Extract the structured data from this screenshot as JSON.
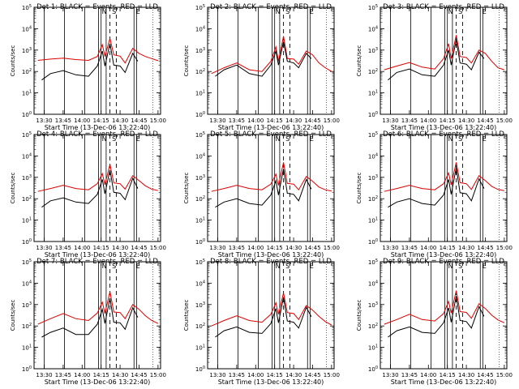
{
  "figure": {
    "xlabel": "Start Time (13-Dec-06 13:22:40)",
    "ylabel": "Counts/sec",
    "x_tick_labels": [
      "13:30",
      "13:45",
      "14:00",
      "14:15",
      "14:30",
      "14:45",
      "15:00"
    ],
    "y_tick_labels": [
      "10^0",
      "10^1",
      "10^2",
      "10^3",
      "10^4",
      "10^5"
    ],
    "colors": {
      "events": "#000000",
      "lld": "#dd0000",
      "background": "#ffffff"
    }
  },
  "chart_data": [
    {
      "type": "line",
      "title": "Det 1: BLACK = Events, RED = LLD",
      "xlabel": "Start Time (13-Dec-06 13:22:40)",
      "ylabel": "Counts/sec",
      "x_range": [
        "13:22",
        "15:02"
      ],
      "yscale": "log",
      "ylim": [
        1,
        100000
      ],
      "marker_letters": [
        {
          "letter": "N",
          "x": "14:15"
        },
        {
          "letter": "S",
          "x": "14:23"
        },
        {
          "letter": "E",
          "x": "14:42"
        }
      ],
      "series": [
        {
          "values_x": [
            "13:25",
            "13:35",
            "13:45",
            "13:55",
            "14:05",
            "14:12",
            "14:16",
            "14:18",
            "14:22",
            "14:25",
            "14:30",
            "14:34",
            "14:40",
            "14:45",
            "14:50",
            "14:55",
            "15:00"
          ],
          "values_y": [
            330,
            380,
            420,
            360,
            330,
            500,
            1800,
            500,
            3500,
            600,
            520,
            250,
            1200,
            700,
            500,
            400,
            320
          ]
        },
        {
          "values_x": [
            "13:28",
            "13:35",
            "13:45",
            "13:55",
            "14:05",
            "14:12",
            "14:16",
            "14:18",
            "14:22",
            "14:25",
            "14:30",
            "14:34",
            "14:40",
            "14:44"
          ],
          "values_y": [
            40,
            80,
            110,
            70,
            60,
            180,
            900,
            180,
            2000,
            200,
            180,
            90,
            700,
            300
          ]
        }
      ]
    },
    {
      "type": "line",
      "title": "Det 2: BLACK = Events, RED = LLD",
      "xlabel": "Start Time (13-Dec-06 13:22:40)",
      "ylabel": "Counts/sec",
      "x_range": [
        "13:22",
        "15:02"
      ],
      "yscale": "log",
      "ylim": [
        1,
        100000
      ],
      "marker_letters": [
        {
          "letter": "N",
          "x": "14:15"
        },
        {
          "letter": "S",
          "x": "14:23"
        },
        {
          "letter": "E",
          "x": "14:42"
        }
      ],
      "series": [
        {
          "values_x": [
            "13:25",
            "13:35",
            "13:45",
            "13:55",
            "14:05",
            "14:12",
            "14:16",
            "14:18",
            "14:22",
            "14:25",
            "14:30",
            "14:34",
            "14:40",
            "14:45",
            "14:50",
            "14:55",
            "15:00"
          ],
          "values_y": [
            80,
            150,
            250,
            120,
            100,
            300,
            1400,
            300,
            4500,
            400,
            380,
            220,
            900,
            600,
            250,
            150,
            100
          ]
        },
        {
          "values_x": [
            "13:28",
            "13:35",
            "13:45",
            "13:55",
            "14:05",
            "14:12",
            "14:16",
            "14:18",
            "14:22",
            "14:25",
            "14:30",
            "14:34",
            "14:40",
            "14:44"
          ],
          "values_y": [
            60,
            120,
            200,
            80,
            60,
            200,
            900,
            200,
            2500,
            300,
            250,
            150,
            700,
            400
          ]
        }
      ]
    },
    {
      "type": "line",
      "title": "Det 3: BLACK = Events, RED = LLD",
      "xlabel": "Start Time (13-Dec-06 13:22:40)",
      "ylabel": "Counts/sec",
      "x_range": [
        "13:22",
        "15:02"
      ],
      "yscale": "log",
      "ylim": [
        1,
        100000
      ],
      "marker_letters": [
        {
          "letter": "N",
          "x": "14:15"
        },
        {
          "letter": "S",
          "x": "14:23"
        },
        {
          "letter": "E",
          "x": "14:42"
        }
      ],
      "series": [
        {
          "values_x": [
            "13:25",
            "13:35",
            "13:45",
            "13:55",
            "14:05",
            "14:12",
            "14:16",
            "14:18",
            "14:22",
            "14:25",
            "14:30",
            "14:34",
            "14:40",
            "14:45",
            "14:50",
            "14:55",
            "15:00"
          ],
          "values_y": [
            120,
            180,
            260,
            160,
            130,
            400,
            2000,
            400,
            5000,
            500,
            450,
            250,
            1000,
            700,
            300,
            150,
            120
          ]
        },
        {
          "values_x": [
            "13:28",
            "13:35",
            "13:45",
            "13:55",
            "14:05",
            "14:12",
            "14:16",
            "14:18",
            "14:22",
            "14:25",
            "14:30",
            "14:34",
            "14:40",
            "14:44"
          ],
          "values_y": [
            40,
            90,
            130,
            70,
            60,
            200,
            1000,
            200,
            3000,
            250,
            220,
            120,
            800,
            400
          ]
        }
      ]
    },
    {
      "type": "line",
      "title": "Det 4: BLACK = Events, RED = LLD",
      "xlabel": "Start Time (13-Dec-06 13:22:40)",
      "ylabel": "Counts/sec",
      "x_range": [
        "13:22",
        "15:02"
      ],
      "yscale": "log",
      "ylim": [
        1,
        100000
      ],
      "marker_letters": [
        {
          "letter": "N",
          "x": "14:15"
        },
        {
          "letter": "S",
          "x": "14:23"
        },
        {
          "letter": "E",
          "x": "14:42"
        }
      ],
      "series": [
        {
          "values_x": [
            "13:25",
            "13:35",
            "13:45",
            "13:55",
            "14:05",
            "14:12",
            "14:16",
            "14:18",
            "14:22",
            "14:25",
            "14:30",
            "14:34",
            "14:40",
            "14:45",
            "14:50",
            "14:55",
            "15:00"
          ],
          "values_y": [
            220,
            300,
            420,
            300,
            260,
            500,
            1500,
            450,
            4000,
            550,
            500,
            280,
            1200,
            700,
            400,
            280,
            240
          ]
        },
        {
          "values_x": [
            "13:28",
            "13:35",
            "13:45",
            "13:55",
            "14:05",
            "14:12",
            "14:16",
            "14:18",
            "14:22",
            "14:25",
            "14:30",
            "14:34",
            "14:40",
            "14:44"
          ],
          "values_y": [
            40,
            80,
            110,
            70,
            60,
            160,
            800,
            170,
            2200,
            200,
            180,
            90,
            900,
            300
          ]
        }
      ]
    },
    {
      "type": "line",
      "title": "Det 5: BLACK = Events, RED = LLD",
      "xlabel": "Start Time (13-Dec-06 13:22:40)",
      "ylabel": "Counts/sec",
      "x_range": [
        "13:22",
        "15:02"
      ],
      "yscale": "log",
      "ylim": [
        1,
        100000
      ],
      "marker_letters": [
        {
          "letter": "N",
          "x": "14:15"
        },
        {
          "letter": "S",
          "x": "14:23"
        },
        {
          "letter": "E",
          "x": "14:42"
        }
      ],
      "series": [
        {
          "values_x": [
            "13:25",
            "13:35",
            "13:45",
            "13:55",
            "14:05",
            "14:12",
            "14:16",
            "14:18",
            "14:22",
            "14:25",
            "14:30",
            "14:34",
            "14:40",
            "14:45",
            "14:50",
            "14:55",
            "15:00"
          ],
          "values_y": [
            220,
            300,
            420,
            300,
            260,
            480,
            1400,
            420,
            5000,
            520,
            480,
            260,
            1100,
            650,
            350,
            260,
            230
          ]
        },
        {
          "values_x": [
            "13:28",
            "13:35",
            "13:45",
            "13:55",
            "14:05",
            "14:12",
            "14:16",
            "14:18",
            "14:22",
            "14:25",
            "14:30",
            "14:34",
            "14:40",
            "14:44"
          ],
          "values_y": [
            40,
            70,
            100,
            60,
            50,
            150,
            700,
            150,
            2500,
            180,
            160,
            80,
            800,
            280
          ]
        }
      ]
    },
    {
      "type": "line",
      "title": "Det 6: BLACK = Events, RED = LLD",
      "xlabel": "Start Time (13-Dec-06 13:22:40)",
      "ylabel": "Counts/sec",
      "x_range": [
        "13:22",
        "15:02"
      ],
      "yscale": "log",
      "ylim": [
        1,
        100000
      ],
      "marker_letters": [
        {
          "letter": "N",
          "x": "14:15"
        },
        {
          "letter": "S",
          "x": "14:23"
        },
        {
          "letter": "E",
          "x": "14:42"
        }
      ],
      "series": [
        {
          "values_x": [
            "13:25",
            "13:35",
            "13:45",
            "13:55",
            "14:05",
            "14:12",
            "14:16",
            "14:18",
            "14:22",
            "14:25",
            "14:30",
            "14:34",
            "14:40",
            "14:45",
            "14:50",
            "14:55",
            "15:00"
          ],
          "values_y": [
            220,
            300,
            420,
            300,
            260,
            500,
            1600,
            450,
            5000,
            560,
            500,
            270,
            1200,
            700,
            380,
            270,
            240
          ]
        },
        {
          "values_x": [
            "13:28",
            "13:35",
            "13:45",
            "13:55",
            "14:05",
            "14:12",
            "14:16",
            "14:18",
            "14:22",
            "14:25",
            "14:30",
            "14:34",
            "14:40",
            "14:44"
          ],
          "values_y": [
            40,
            70,
            100,
            60,
            50,
            150,
            800,
            160,
            2800,
            190,
            170,
            80,
            850,
            300
          ]
        }
      ]
    },
    {
      "type": "line",
      "title": "Det 7: BLACK = Events, RED = LLD",
      "xlabel": "Start Time (13-Dec-06 13:22:40)",
      "ylabel": "Counts/sec",
      "x_range": [
        "13:22",
        "15:02"
      ],
      "yscale": "log",
      "ylim": [
        1,
        100000
      ],
      "marker_letters": [
        {
          "letter": "N",
          "x": "14:15"
        },
        {
          "letter": "S",
          "x": "14:23"
        },
        {
          "letter": "E",
          "x": "14:42"
        }
      ],
      "series": [
        {
          "values_x": [
            "13:25",
            "13:35",
            "13:45",
            "13:55",
            "14:05",
            "14:12",
            "14:16",
            "14:18",
            "14:22",
            "14:25",
            "14:30",
            "14:34",
            "14:40",
            "14:45",
            "14:50",
            "14:55",
            "15:00"
          ],
          "values_y": [
            120,
            220,
            380,
            220,
            180,
            400,
            1300,
            380,
            4000,
            450,
            420,
            220,
            1000,
            600,
            300,
            180,
            130
          ]
        },
        {
          "values_x": [
            "13:28",
            "13:35",
            "13:45",
            "13:55",
            "14:05",
            "14:12",
            "14:16",
            "14:18",
            "14:22",
            "14:25",
            "14:30",
            "14:34",
            "14:40",
            "14:44"
          ],
          "values_y": [
            30,
            50,
            80,
            40,
            40,
            120,
            600,
            130,
            2000,
            150,
            140,
            70,
            700,
            250
          ]
        }
      ]
    },
    {
      "type": "line",
      "title": "Det 8: BLACK = Events, RED = LLD",
      "xlabel": "Start Time (13-Dec-06 13:22:40)",
      "ylabel": "Counts/sec",
      "x_range": [
        "13:22",
        "15:02"
      ],
      "yscale": "log",
      "ylim": [
        1,
        100000
      ],
      "marker_letters": [
        {
          "letter": "N",
          "x": "14:15"
        },
        {
          "letter": "S",
          "x": "14:23"
        },
        {
          "letter": "E",
          "x": "14:42"
        }
      ],
      "series": [
        {
          "values_x": [
            "13:25",
            "13:35",
            "13:45",
            "13:55",
            "14:05",
            "14:12",
            "14:16",
            "14:18",
            "14:22",
            "14:25",
            "14:30",
            "14:34",
            "14:40",
            "14:45",
            "14:50",
            "14:55",
            "15:00"
          ],
          "values_y": [
            100,
            180,
            300,
            180,
            150,
            350,
            1200,
            350,
            3500,
            420,
            380,
            200,
            900,
            550,
            280,
            160,
            110
          ]
        },
        {
          "values_x": [
            "13:28",
            "13:35",
            "13:45",
            "13:55",
            "14:05",
            "14:12",
            "14:16",
            "14:18",
            "14:22",
            "14:25",
            "14:30",
            "14:34",
            "14:40",
            "14:44"
          ],
          "values_y": [
            30,
            60,
            90,
            50,
            45,
            130,
            650,
            140,
            2200,
            170,
            150,
            80,
            750,
            270
          ]
        }
      ]
    },
    {
      "type": "line",
      "title": "Det 9: BLACK = Events, RED = LLD",
      "xlabel": "Start Time (13-Dec-06 13:22:40)",
      "ylabel": "Counts/sec",
      "x_range": [
        "13:22",
        "15:02"
      ],
      "yscale": "log",
      "ylim": [
        1,
        100000
      ],
      "marker_letters": [
        {
          "letter": "N",
          "x": "14:15"
        },
        {
          "letter": "S",
          "x": "14:23"
        },
        {
          "letter": "E",
          "x": "14:42"
        }
      ],
      "series": [
        {
          "values_x": [
            "13:25",
            "13:35",
            "13:45",
            "13:55",
            "14:05",
            "14:12",
            "14:16",
            "14:18",
            "14:22",
            "14:25",
            "14:30",
            "14:34",
            "14:40",
            "14:45",
            "14:50",
            "14:55",
            "15:00"
          ],
          "values_y": [
            120,
            200,
            350,
            200,
            170,
            380,
            1400,
            400,
            4500,
            470,
            430,
            230,
            1100,
            650,
            320,
            190,
            140
          ]
        },
        {
          "values_x": [
            "13:28",
            "13:35",
            "13:45",
            "13:55",
            "14:05",
            "14:12",
            "14:16",
            "14:18",
            "14:22",
            "14:25",
            "14:30",
            "14:34",
            "14:40",
            "14:44"
          ],
          "values_y": [
            30,
            60,
            90,
            50,
            45,
            140,
            700,
            150,
            2500,
            180,
            160,
            80,
            800,
            280
          ]
        }
      ]
    }
  ]
}
